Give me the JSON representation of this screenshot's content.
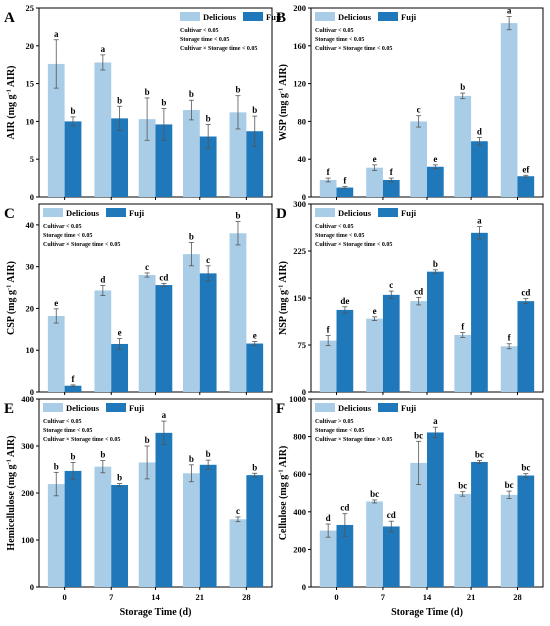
{
  "colors": {
    "delicious": "#a9cde6",
    "fuji": "#1f78b9",
    "axis": "#000000",
    "background": "#ffffff"
  },
  "legend": {
    "delicious": "Delicious",
    "fuji": "Fuji"
  },
  "x_title": "Storage Time (d)",
  "chart_data": [
    {
      "type": "bar",
      "panel": "A",
      "ylabel": "AIR (mg g",
      "categories": [
        "0",
        "7",
        "14",
        "21",
        "28"
      ],
      "ylim": [
        0,
        25
      ],
      "yticks": [
        0,
        5,
        10,
        15,
        20,
        25
      ],
      "show_xticks": false,
      "legend_placement": "top-right",
      "stats": [
        "Cultivar < 0.05",
        "Storage time < 0.05",
        "Cultivar × Storage time < 0.05"
      ],
      "series": [
        {
          "name": "Delicious",
          "values": [
            17.6,
            17.8,
            10.3,
            11.5,
            11.2
          ],
          "errors": [
            3.2,
            1.0,
            2.8,
            1.3,
            2.2
          ],
          "labels": [
            "a",
            "a",
            "b",
            "b",
            "b"
          ]
        },
        {
          "name": "Fuji",
          "values": [
            10.0,
            10.4,
            9.6,
            8.0,
            8.7
          ],
          "errors": [
            0.6,
            1.6,
            2.1,
            1.6,
            2.0
          ],
          "labels": [
            "b",
            "b",
            "b",
            "b",
            "b"
          ]
        }
      ]
    },
    {
      "type": "bar",
      "panel": "B",
      "ylabel": "WSP (mg g",
      "categories": [
        "0",
        "7",
        "14",
        "21",
        "28"
      ],
      "ylim": [
        0,
        200
      ],
      "yticks": [
        0,
        40,
        80,
        120,
        160,
        200
      ],
      "show_xticks": false,
      "legend_placement": "top-left",
      "stats": [
        "Cultivar < 0.05",
        "Storage time < 0.05",
        "Cultivar × Storage time < 0.05"
      ],
      "series": [
        {
          "name": "Delicious",
          "values": [
            18,
            31,
            80,
            107,
            184
          ],
          "errors": [
            2,
            3,
            6,
            3,
            7
          ],
          "labels": [
            "f",
            "e",
            "c",
            "b",
            "a"
          ]
        },
        {
          "name": "Fuji",
          "values": [
            10,
            18,
            32,
            59,
            22
          ],
          "errors": [
            1,
            2,
            2,
            4,
            1
          ],
          "labels": [
            "f",
            "f",
            "e",
            "d",
            "ef"
          ]
        }
      ]
    },
    {
      "type": "bar",
      "panel": "C",
      "ylabel": "CSP (mg g",
      "categories": [
        "0",
        "7",
        "14",
        "21",
        "28"
      ],
      "ylim": [
        0,
        45
      ],
      "yticks": [
        0,
        10,
        20,
        30,
        40
      ],
      "show_xticks": false,
      "legend_placement": "top-left",
      "stats": [
        "Cultivar < 0.05",
        "Storage time < 0.05",
        "Cultivar × Storage time < 0.05"
      ],
      "series": [
        {
          "name": "Delicious",
          "values": [
            18.2,
            24.3,
            28.0,
            33.0,
            38.0
          ],
          "errors": [
            1.7,
            1.2,
            0.5,
            2.8,
            2.8
          ],
          "labels": [
            "e",
            "d",
            "c",
            "b",
            "b"
          ]
        },
        {
          "name": "Fuji",
          "values": [
            1.5,
            11.5,
            25.6,
            28.4,
            11.6
          ],
          "errors": [
            0.2,
            1.3,
            0.4,
            1.8,
            0.5
          ],
          "labels": [
            "f",
            "e",
            "cd",
            "c",
            "e"
          ]
        }
      ]
    },
    {
      "type": "bar",
      "panel": "D",
      "ylabel": "NSP (mg g",
      "categories": [
        "0",
        "7",
        "14",
        "21",
        "28"
      ],
      "ylim": [
        0,
        300
      ],
      "yticks": [
        0,
        75,
        150,
        225,
        300
      ],
      "show_xticks": false,
      "legend_placement": "top-left",
      "stats": [
        "Cultivar < 0.05",
        "Storage time < 0.05",
        "Cultivar × Storage time < 0.05"
      ],
      "series": [
        {
          "name": "Delicious",
          "values": [
            82,
            117,
            145,
            91,
            73
          ],
          "errors": [
            8,
            3,
            6,
            4,
            4
          ],
          "labels": [
            "f",
            "e",
            "cd",
            "f",
            "f"
          ]
        },
        {
          "name": "Fuji",
          "values": [
            131,
            155,
            192,
            254,
            145
          ],
          "errors": [
            5,
            6,
            3,
            10,
            4
          ],
          "labels": [
            "de",
            "c",
            "b",
            "a",
            "cd"
          ]
        }
      ]
    },
    {
      "type": "bar",
      "panel": "E",
      "ylabel": "Hemicellulose (mg g",
      "categories": [
        "0",
        "7",
        "14",
        "21",
        "28"
      ],
      "ylim": [
        0,
        400
      ],
      "yticks": [
        0,
        100,
        200,
        300,
        400
      ],
      "show_xticks": true,
      "legend_placement": "top-left",
      "stats": [
        "Cultivar < 0.05",
        "Storage time < 0.05",
        "Cultivar × Storage time < 0.05"
      ],
      "series": [
        {
          "name": "Delicious",
          "values": [
            219,
            256,
            265,
            242,
            144
          ],
          "errors": [
            25,
            13,
            35,
            18,
            5
          ],
          "labels": [
            "b",
            "b",
            "b",
            "b",
            "c"
          ]
        },
        {
          "name": "Fuji",
          "values": [
            247,
            217,
            328,
            260,
            238
          ],
          "errors": [
            18,
            3,
            25,
            10,
            4
          ],
          "labels": [
            "b",
            "b",
            "a",
            "b",
            "b"
          ]
        }
      ]
    },
    {
      "type": "bar",
      "panel": "F",
      "ylabel": "Cellulose (mg g",
      "categories": [
        "0",
        "7",
        "14",
        "21",
        "28"
      ],
      "ylim": [
        0,
        1000
      ],
      "yticks": [
        0,
        200,
        400,
        600,
        800,
        1000
      ],
      "show_xticks": true,
      "legend_placement": "top-left",
      "stats": [
        "Cultivar > 0.05",
        "Storage time < 0.05",
        "Cultivar × Storage time > 0.05"
      ],
      "series": [
        {
          "name": "Delicious",
          "values": [
            300,
            455,
            660,
            495,
            490
          ],
          "errors": [
            35,
            8,
            115,
            12,
            20
          ],
          "labels": [
            "d",
            "bc",
            "bc",
            "bc",
            "bc"
          ]
        },
        {
          "name": "Fuji",
          "values": [
            330,
            322,
            822,
            665,
            593
          ],
          "errors": [
            60,
            28,
            28,
            8,
            10
          ],
          "labels": [
            "cd",
            "cd",
            "a",
            "bc",
            "bc"
          ]
        }
      ]
    }
  ]
}
